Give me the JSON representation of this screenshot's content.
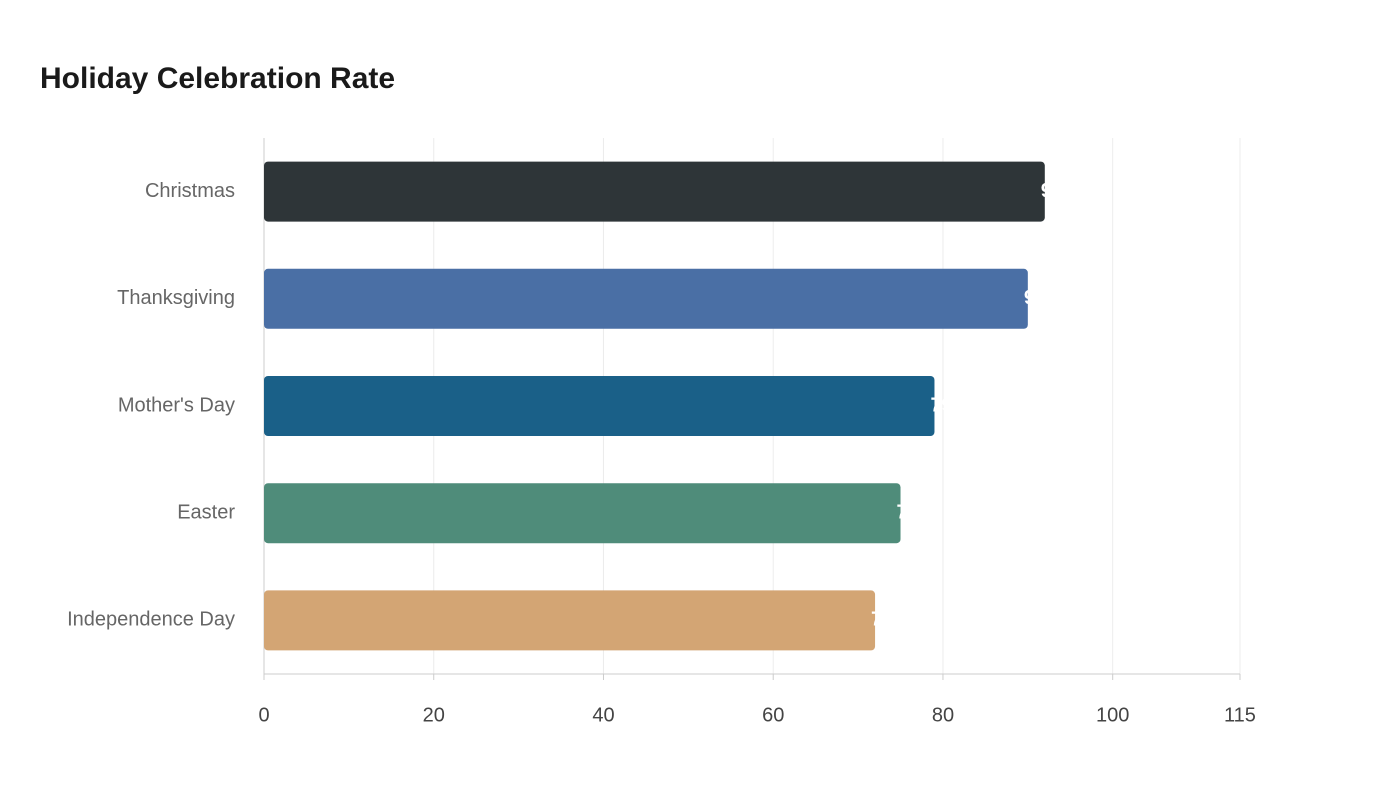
{
  "chart_data": {
    "type": "hbar",
    "title": "Holiday Celebration Rate",
    "categories": [
      "Christmas",
      "Thanksgiving",
      "Mother's Day",
      "Easter",
      "Independence Day"
    ],
    "values": [
      92,
      90,
      79,
      75,
      72
    ],
    "colors": [
      "#2e3538",
      "#4a6fa5",
      "#1a6088",
      "#4f8c7a",
      "#d3a574"
    ],
    "xlim": [
      0,
      115
    ],
    "xticks": [
      0,
      20,
      40,
      60,
      80,
      100,
      115
    ],
    "grid": true
  }
}
